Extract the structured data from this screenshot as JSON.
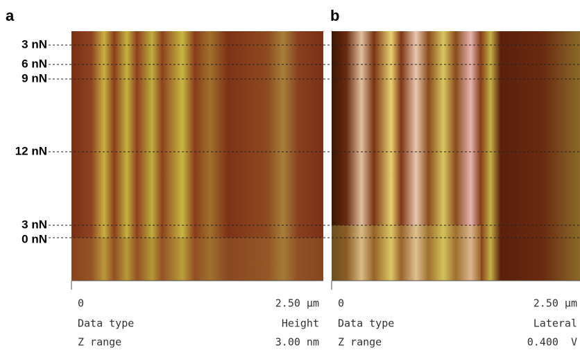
{
  "force_labels": [
    "3 nN",
    "6 nN",
    "9 nN",
    "12 nN",
    "3 nN",
    "0 nN"
  ],
  "panels": [
    {
      "label": "a",
      "x_start": "0",
      "x_end": "2.50 µm",
      "data_type_label": "Data type",
      "data_type": "Height",
      "z_range_label": "Z range",
      "z_range": "3.00 nm"
    },
    {
      "label": "b",
      "x_start": "0",
      "x_end": "2.50 µm",
      "data_type_label": "Data type",
      "data_type": "Lateral",
      "z_range_label": "Z range",
      "z_range": "0.400  V"
    }
  ]
}
